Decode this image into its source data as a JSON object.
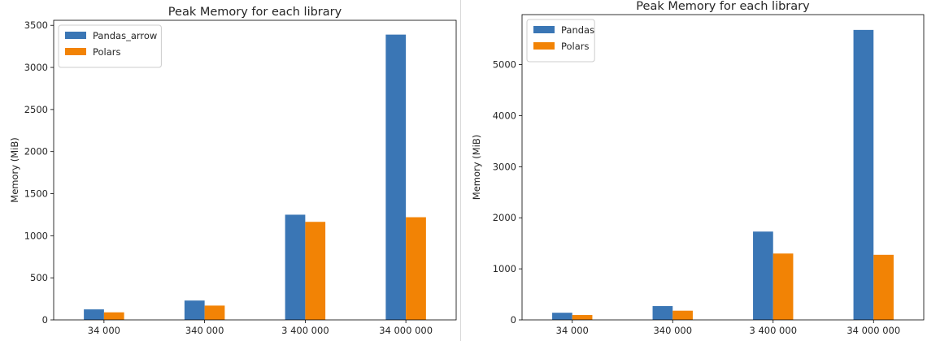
{
  "chart_data": [
    {
      "type": "bar",
      "title": "Peak Memory for each library",
      "xlabel": "",
      "ylabel": "Memory (MiB)",
      "categories": [
        "34 000",
        "340 000",
        "3 400 000",
        "34 000 000"
      ],
      "ylim": [
        0,
        3560
      ],
      "yticks": [
        0,
        500,
        1000,
        1500,
        2000,
        2500,
        3000,
        3500
      ],
      "legend": "top-left",
      "grid": false,
      "series": [
        {
          "name": "Pandas_arrow",
          "color": "#3a76b5",
          "values": [
            125,
            230,
            1250,
            3390
          ]
        },
        {
          "name": "Polars",
          "color": "#f28305",
          "values": [
            90,
            170,
            1165,
            1220
          ]
        }
      ]
    },
    {
      "type": "bar",
      "title": "Peak Memory for each library",
      "xlabel": "",
      "ylabel": "Memory (MiB)",
      "categories": [
        "34 000",
        "340 000",
        "3 400 000",
        "34 000 000"
      ],
      "ylim": [
        0,
        5980
      ],
      "yticks": [
        0,
        1000,
        2000,
        3000,
        4000,
        5000
      ],
      "legend": "top-left",
      "grid": false,
      "series": [
        {
          "name": "Pandas",
          "color": "#3a76b5",
          "values": [
            140,
            270,
            1730,
            5680
          ]
        },
        {
          "name": "Polars",
          "color": "#f28305",
          "values": [
            95,
            180,
            1300,
            1275
          ]
        }
      ]
    }
  ]
}
